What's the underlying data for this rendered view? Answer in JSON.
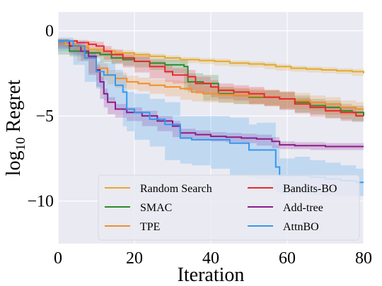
{
  "chart_data": {
    "type": "line",
    "title": "",
    "xlabel": "Iteration",
    "ylabel_main": "log",
    "ylabel_sub": "10",
    "ylabel_rest": " Regret",
    "xlim": [
      0,
      80
    ],
    "ylim": [
      -12.5,
      1.1
    ],
    "xticks": [
      0,
      20,
      40,
      60,
      80
    ],
    "yticks": [
      0,
      -5,
      -10
    ],
    "xtick_labels": [
      "0",
      "20",
      "40",
      "60",
      "80"
    ],
    "ytick_labels": [
      "0",
      "−5",
      "−10"
    ],
    "grid": true,
    "background": "#eaeaf2",
    "legend_position": "lower-right",
    "series": [
      {
        "name": "Random Search",
        "color": "#e3a92d",
        "x": [
          0,
          2,
          4,
          8,
          12,
          15,
          20,
          24,
          28,
          32,
          37,
          41,
          45,
          50,
          54,
          57,
          61,
          65,
          69,
          73,
          77,
          80
        ],
        "mean": [
          -0.6,
          -0.8,
          -0.9,
          -1.1,
          -1.2,
          -1.3,
          -1.4,
          -1.5,
          -1.6,
          -1.7,
          -1.75,
          -1.8,
          -1.9,
          -1.95,
          -2.0,
          -2.1,
          -2.2,
          -2.25,
          -2.3,
          -2.35,
          -2.4,
          -2.5
        ],
        "lo": [
          -0.7,
          -0.9,
          -1.0,
          -1.2,
          -1.35,
          -1.45,
          -1.55,
          -1.65,
          -1.75,
          -1.85,
          -1.9,
          -1.95,
          -2.05,
          -2.1,
          -2.15,
          -2.25,
          -2.35,
          -2.4,
          -2.45,
          -2.5,
          -2.55,
          -2.65
        ],
        "hi": [
          -0.5,
          -0.7,
          -0.8,
          -1.0,
          -1.05,
          -1.15,
          -1.25,
          -1.35,
          -1.45,
          -1.55,
          -1.6,
          -1.65,
          -1.75,
          -1.8,
          -1.85,
          -1.95,
          -2.05,
          -2.1,
          -2.15,
          -2.2,
          -2.25,
          -2.35
        ]
      },
      {
        "name": "SMAC",
        "color": "#2d8a2d",
        "x": [
          0,
          3,
          7,
          11,
          14,
          17,
          20,
          24,
          28,
          33,
          34,
          38,
          42,
          46,
          50,
          54,
          58,
          62,
          66,
          70,
          74,
          77,
          80
        ],
        "mean": [
          -0.6,
          -1.2,
          -1.3,
          -1.4,
          -1.6,
          -1.7,
          -1.8,
          -1.9,
          -2.0,
          -2.1,
          -3.0,
          -3.1,
          -3.7,
          -3.8,
          -3.9,
          -3.9,
          -4.0,
          -4.2,
          -4.4,
          -4.5,
          -4.7,
          -4.8,
          -5.0
        ],
        "lo": [
          -0.7,
          -1.4,
          -1.5,
          -1.6,
          -1.85,
          -1.95,
          -2.05,
          -2.15,
          -2.3,
          -2.5,
          -3.5,
          -3.6,
          -4.1,
          -4.2,
          -4.3,
          -4.3,
          -4.4,
          -4.6,
          -4.8,
          -4.9,
          -5.1,
          -5.2,
          -5.35
        ],
        "hi": [
          -0.5,
          -1.0,
          -1.1,
          -1.2,
          -1.35,
          -1.45,
          -1.55,
          -1.65,
          -1.7,
          -1.7,
          -2.5,
          -2.6,
          -3.3,
          -3.4,
          -3.5,
          -3.5,
          -3.6,
          -3.8,
          -4.0,
          -4.1,
          -4.3,
          -4.4,
          -4.65
        ]
      },
      {
        "name": "TPE",
        "color": "#f28e2b",
        "x": [
          0,
          3,
          5,
          8,
          10,
          13,
          15,
          18,
          21,
          24,
          28,
          32,
          35,
          38,
          42,
          46,
          50,
          54,
          58,
          62,
          66,
          70,
          74,
          78,
          80
        ],
        "mean": [
          -0.6,
          -0.8,
          -1.0,
          -1.5,
          -2.2,
          -2.6,
          -2.8,
          -3.0,
          -3.1,
          -3.2,
          -3.3,
          -3.4,
          -3.6,
          -3.7,
          -3.75,
          -3.8,
          -3.85,
          -3.9,
          -4.0,
          -4.1,
          -4.2,
          -4.3,
          -4.5,
          -4.6,
          -4.6
        ],
        "lo": [
          -0.7,
          -0.95,
          -1.2,
          -1.8,
          -2.5,
          -2.9,
          -3.15,
          -3.35,
          -3.45,
          -3.55,
          -3.7,
          -3.85,
          -4.05,
          -4.15,
          -4.2,
          -4.25,
          -4.3,
          -4.35,
          -4.45,
          -4.55,
          -4.6,
          -4.7,
          -4.9,
          -5.0,
          -5.0
        ],
        "hi": [
          -0.5,
          -0.65,
          -0.8,
          -1.2,
          -1.9,
          -2.3,
          -2.45,
          -2.65,
          -2.75,
          -2.85,
          -2.9,
          -2.95,
          -3.15,
          -3.25,
          -3.3,
          -3.35,
          -3.4,
          -3.45,
          -3.55,
          -3.65,
          -3.8,
          -3.9,
          -4.1,
          -4.2,
          -4.2
        ]
      },
      {
        "name": "Bandits-BO",
        "color": "#e8292b",
        "x": [
          0,
          3,
          5,
          8,
          10,
          12,
          14,
          17,
          20,
          24,
          28,
          30,
          34,
          36,
          40,
          42,
          46,
          50,
          54,
          58,
          62,
          66,
          70,
          74,
          78,
          80
        ],
        "mean": [
          -0.6,
          -0.6,
          -0.7,
          -0.8,
          -0.9,
          -1.2,
          -1.4,
          -1.6,
          -1.8,
          -2.1,
          -2.4,
          -2.6,
          -2.7,
          -3.1,
          -3.3,
          -3.5,
          -3.6,
          -3.7,
          -3.9,
          -4.0,
          -4.3,
          -4.5,
          -4.7,
          -4.8,
          -5.0,
          -5.0
        ],
        "lo": [
          -0.7,
          -0.75,
          -0.85,
          -1.0,
          -1.15,
          -1.5,
          -1.7,
          -1.9,
          -2.15,
          -2.45,
          -2.8,
          -3.0,
          -3.1,
          -3.5,
          -3.7,
          -3.9,
          -4.0,
          -4.1,
          -4.3,
          -4.4,
          -4.65,
          -4.85,
          -5.05,
          -5.15,
          -5.3,
          -5.3
        ],
        "hi": [
          -0.5,
          -0.5,
          -0.55,
          -0.6,
          -0.65,
          -0.9,
          -1.1,
          -1.3,
          -1.45,
          -1.75,
          -2.0,
          -2.2,
          -2.3,
          -2.7,
          -2.9,
          -3.1,
          -3.2,
          -3.3,
          -3.5,
          -3.6,
          -3.95,
          -4.15,
          -4.35,
          -4.45,
          -4.7,
          -4.7
        ]
      },
      {
        "name": "Add-tree",
        "color": "#8b1c8b",
        "x": [
          0,
          3,
          6,
          8,
          10,
          11,
          12,
          13,
          15,
          18,
          22,
          26,
          30,
          32,
          36,
          40,
          44,
          48,
          52,
          56,
          58,
          62,
          66,
          70,
          74,
          78,
          80
        ],
        "mean": [
          -0.6,
          -0.9,
          -1.2,
          -1.5,
          -2.3,
          -3.0,
          -3.7,
          -4.2,
          -4.6,
          -4.8,
          -5.0,
          -5.3,
          -5.6,
          -6.0,
          -6.1,
          -6.2,
          -6.25,
          -6.3,
          -6.35,
          -6.5,
          -6.7,
          -6.75,
          -6.75,
          -6.8,
          -6.8,
          -6.8,
          -6.8
        ],
        "lo": [
          -0.7,
          -1.05,
          -1.4,
          -1.75,
          -2.6,
          -3.3,
          -4.0,
          -4.5,
          -4.9,
          -5.1,
          -5.3,
          -5.6,
          -5.9,
          -6.25,
          -6.35,
          -6.45,
          -6.5,
          -6.55,
          -6.6,
          -6.75,
          -6.9,
          -6.95,
          -6.95,
          -7.0,
          -7.0,
          -7.0,
          -7.0
        ],
        "hi": [
          -0.5,
          -0.75,
          -1.0,
          -1.25,
          -2.0,
          -2.7,
          -3.4,
          -3.9,
          -4.3,
          -4.5,
          -4.7,
          -5.0,
          -5.3,
          -5.75,
          -5.85,
          -5.95,
          -6.0,
          -6.05,
          -6.1,
          -6.25,
          -6.5,
          -6.55,
          -6.55,
          -6.6,
          -6.6,
          -6.6,
          -6.6
        ]
      },
      {
        "name": "AttnBO",
        "color": "#3399ee",
        "x": [
          0,
          4,
          7,
          10,
          12,
          15,
          17,
          18,
          20,
          24,
          28,
          32,
          35,
          40,
          45,
          50,
          52,
          56,
          57,
          58,
          62,
          66,
          70,
          74,
          78,
          80
        ],
        "mean": [
          -0.6,
          -0.9,
          -1.6,
          -2.4,
          -2.6,
          -3.2,
          -3.6,
          -4.6,
          -4.8,
          -5.2,
          -5.5,
          -6.3,
          -6.4,
          -6.4,
          -6.6,
          -7.0,
          -7.0,
          -7.0,
          -8.0,
          -8.5,
          -8.5,
          -8.6,
          -8.7,
          -8.8,
          -8.9,
          -8.9
        ],
        "lo": [
          -0.8,
          -1.2,
          -2.0,
          -3.0,
          -3.4,
          -4.1,
          -4.6,
          -5.6,
          -5.9,
          -6.4,
          -6.8,
          -7.6,
          -7.8,
          -7.9,
          -8.1,
          -8.5,
          -8.6,
          -8.7,
          -9.3,
          -9.5,
          -9.6,
          -9.6,
          -9.65,
          -9.7,
          -9.7,
          -9.7
        ],
        "hi": [
          -0.4,
          -0.6,
          -1.2,
          -1.8,
          -1.9,
          -2.3,
          -2.6,
          -3.6,
          -3.7,
          -4.0,
          -4.2,
          -5.0,
          -5.0,
          -5.0,
          -5.1,
          -5.5,
          -5.4,
          -5.4,
          -6.7,
          -7.5,
          -7.4,
          -7.6,
          -7.75,
          -7.9,
          -8.1,
          -8.1
        ]
      }
    ]
  }
}
